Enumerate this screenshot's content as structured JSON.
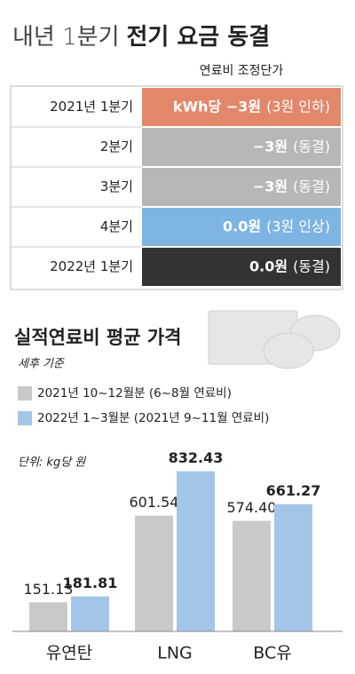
{
  "title": {
    "light": "내년 1분기",
    "bold": "전기 요금 동결"
  },
  "table": {
    "header": "연료비 조정단가",
    "rows": [
      {
        "label": "2021년 1분기",
        "value": "kWh당 −3원",
        "note": "(3원 인하)"
      },
      {
        "label": "2분기",
        "value": "−3원",
        "note": "(동결)"
      },
      {
        "label": "3분기",
        "value": "−3원",
        "note": "(동결)"
      },
      {
        "label": "4분기",
        "value": "0.0원",
        "note": "(3원 인상)"
      },
      {
        "label": "2022년 1분기",
        "value": "0.0원",
        "note": "(동결)"
      }
    ]
  },
  "chart_data": {
    "type": "bar",
    "title": "실적연료비 평균 가격",
    "subtitle": "세후 기준",
    "unit": "단위: kg당 원",
    "categories": [
      "유연탄",
      "LNG",
      "BC유"
    ],
    "series": [
      {
        "name": "2021년 10~12월분 (6~8월 연료비)",
        "color": "#c9c9c9",
        "values": [
          151.13,
          601.54,
          574.4
        ],
        "value_labels": [
          "151.13",
          "601.54",
          "574.40"
        ]
      },
      {
        "name": "2022년 1~3월분 (2021년 9~11월 연료비)",
        "color": "#a3c6e8",
        "values": [
          181.81,
          832.43,
          661.27
        ]
      }
    ],
    "ylim": [
      0,
      900
    ]
  }
}
